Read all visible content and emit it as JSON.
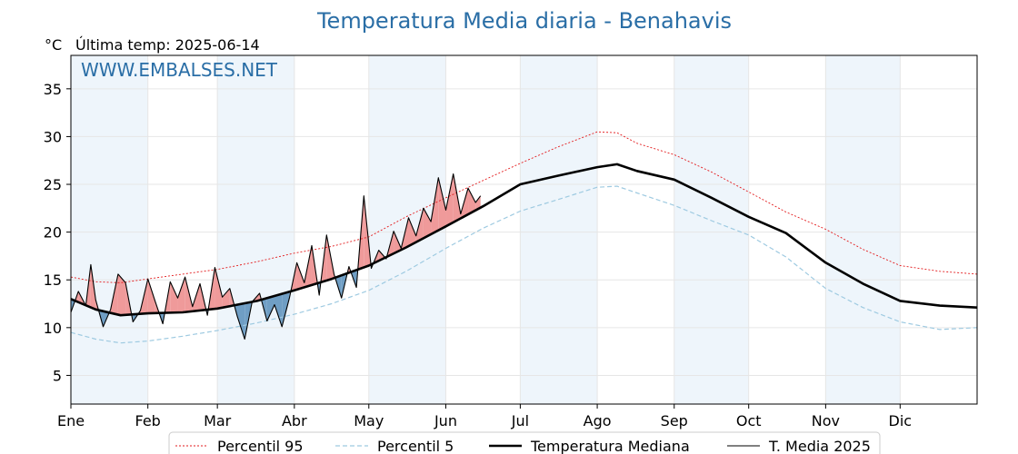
{
  "chart_data": {
    "type": "line",
    "title": "Temperatura Media diaria - Benahavis",
    "unit_label": "°C",
    "subtitle": "Última temp: 2025-06-14",
    "watermark": "WWW.EMBALSES.NET",
    "xlim": [
      0,
      365
    ],
    "ylim": [
      2,
      38.5
    ],
    "y_ticks": [
      5,
      10,
      15,
      20,
      25,
      30,
      35
    ],
    "month_ticks": [
      {
        "label": "Ene",
        "day": 0
      },
      {
        "label": "Feb",
        "day": 31
      },
      {
        "label": "Mar",
        "day": 59
      },
      {
        "label": "Abr",
        "day": 90
      },
      {
        "label": "May",
        "day": 120
      },
      {
        "label": "Jun",
        "day": 151
      },
      {
        "label": "Jul",
        "day": 181
      },
      {
        "label": "Ago",
        "day": 212
      },
      {
        "label": "Sep",
        "day": 243
      },
      {
        "label": "Oct",
        "day": 273
      },
      {
        "label": "Nov",
        "day": 304
      },
      {
        "label": "Dic",
        "day": 334
      }
    ],
    "grid": true,
    "legend_position": "bottom",
    "series": [
      {
        "name": "Percentil 95",
        "color": "#e31a1c",
        "style": "dotted",
        "x": [
          0,
          10,
          20,
          31,
          45,
          59,
          75,
          90,
          105,
          120,
          135,
          151,
          166,
          181,
          196,
          212,
          220,
          228,
          243,
          258,
          273,
          288,
          304,
          319,
          334,
          350,
          365
        ],
        "y": [
          15.3,
          14.8,
          14.7,
          15.1,
          15.6,
          16.1,
          16.9,
          17.8,
          18.5,
          19.5,
          21.6,
          23.6,
          25.4,
          27.2,
          28.9,
          30.5,
          30.4,
          29.3,
          28.1,
          26.3,
          24.2,
          22.1,
          20.3,
          18.2,
          16.5,
          15.9,
          15.6
        ]
      },
      {
        "name": "Percentil 5",
        "color": "#9ecae1",
        "style": "dashed",
        "x": [
          0,
          10,
          20,
          31,
          45,
          59,
          75,
          90,
          105,
          120,
          135,
          151,
          166,
          181,
          196,
          212,
          220,
          228,
          243,
          258,
          273,
          288,
          304,
          319,
          334,
          350,
          365
        ],
        "y": [
          9.5,
          8.8,
          8.4,
          8.6,
          9.1,
          9.7,
          10.5,
          11.4,
          12.5,
          13.9,
          15.9,
          18.3,
          20.4,
          22.2,
          23.4,
          24.7,
          24.8,
          24.1,
          22.8,
          21.2,
          19.7,
          17.4,
          14.1,
          12.1,
          10.6,
          9.8,
          10.0
        ]
      },
      {
        "name": "Temperatura Mediana",
        "color": "#000000",
        "style": "thick",
        "x": [
          0,
          10,
          20,
          31,
          45,
          59,
          75,
          90,
          105,
          120,
          135,
          151,
          166,
          181,
          196,
          212,
          220,
          228,
          243,
          258,
          273,
          288,
          304,
          319,
          334,
          350,
          365
        ],
        "y": [
          13.0,
          11.9,
          11.3,
          11.5,
          11.6,
          12.0,
          12.8,
          13.9,
          15.1,
          16.5,
          18.4,
          20.6,
          22.7,
          25.0,
          25.9,
          26.8,
          27.1,
          26.4,
          25.5,
          23.6,
          21.6,
          19.9,
          16.8,
          14.6,
          12.8,
          12.3,
          12.1
        ]
      },
      {
        "name": "T. Media 2025",
        "color": "#000000",
        "style": "thin",
        "x": [
          0,
          3,
          6,
          8,
          10,
          13,
          16,
          19,
          22,
          25,
          28,
          31,
          34,
          37,
          40,
          43,
          46,
          49,
          52,
          55,
          58,
          61,
          64,
          67,
          70,
          73,
          76,
          79,
          82,
          85,
          88,
          91,
          94,
          97,
          100,
          103,
          106,
          109,
          112,
          115,
          118,
          121,
          124,
          127,
          130,
          133,
          136,
          139,
          142,
          145,
          148,
          151,
          154,
          157,
          160,
          163,
          165
        ],
        "y": [
          11.6,
          13.8,
          12.3,
          16.6,
          12.9,
          10.1,
          11.9,
          15.6,
          14.7,
          10.6,
          11.8,
          15.1,
          12.7,
          10.4,
          14.8,
          13.1,
          15.3,
          12.2,
          14.6,
          11.3,
          16.3,
          13.2,
          14.1,
          11.2,
          8.8,
          12.7,
          13.6,
          10.7,
          12.4,
          10.1,
          13.1,
          16.8,
          14.7,
          18.6,
          13.4,
          19.7,
          15.6,
          13.1,
          16.4,
          14.2,
          23.8,
          16.2,
          18.1,
          17.2,
          20.1,
          18.3,
          21.5,
          19.6,
          22.5,
          21.1,
          25.7,
          22.3,
          26.1,
          21.9,
          24.6,
          23.1,
          23.8
        ]
      }
    ]
  },
  "legend": [
    {
      "label": "Percentil 95",
      "style": "dotted",
      "color": "#e31a1c"
    },
    {
      "label": "Percentil 5",
      "style": "dashed",
      "color": "#9ecae1"
    },
    {
      "label": "Temperatura Mediana",
      "style": "thick",
      "color": "#000000"
    },
    {
      "label": "T. Media 2025",
      "style": "thin",
      "color": "#000000"
    }
  ],
  "colors": {
    "above_fill": "#ef9a9a",
    "below_fill": "#6f9ec4",
    "month_band": "#eef5fb",
    "title": "#2a6ea6"
  }
}
